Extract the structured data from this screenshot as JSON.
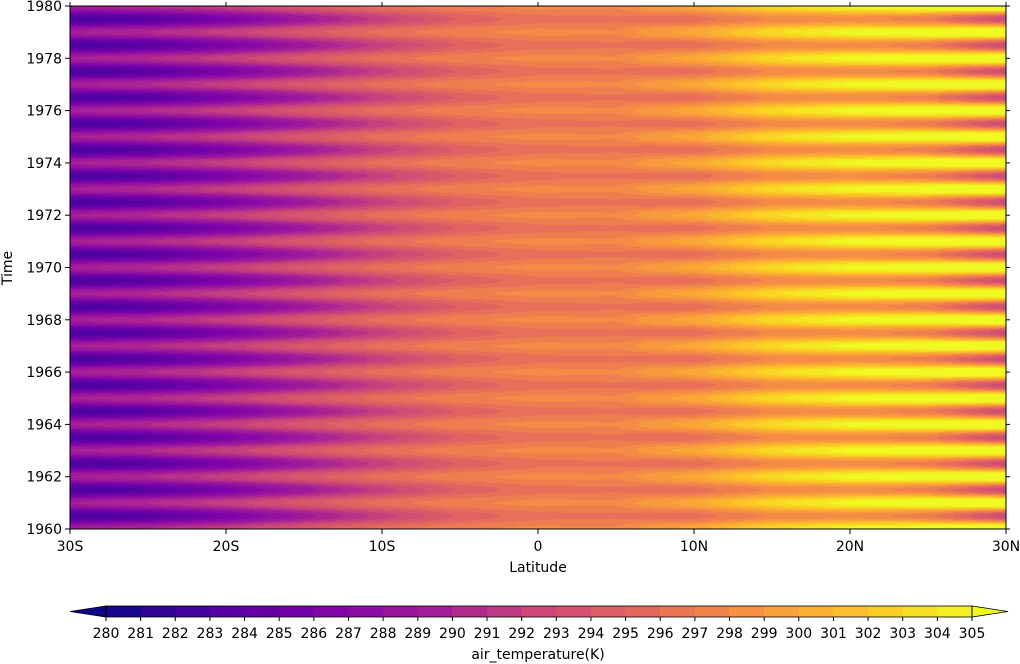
{
  "chart_data": {
    "type": "heatmap",
    "title": "",
    "xlabel": "Latitude",
    "ylabel": "Time",
    "x_ticks": [
      {
        "value": -30,
        "label": "30S"
      },
      {
        "value": -20,
        "label": "20S"
      },
      {
        "value": -10,
        "label": "10S"
      },
      {
        "value": 0,
        "label": "0"
      },
      {
        "value": 10,
        "label": "10N"
      },
      {
        "value": 20,
        "label": "20N"
      },
      {
        "value": 30,
        "label": "30N"
      }
    ],
    "y_ticks": [
      {
        "value": 1960,
        "label": "1960"
      },
      {
        "value": 1962,
        "label": "1962"
      },
      {
        "value": 1964,
        "label": "1964"
      },
      {
        "value": 1966,
        "label": "1966"
      },
      {
        "value": 1968,
        "label": "1968"
      },
      {
        "value": 1970,
        "label": "1970"
      },
      {
        "value": 1972,
        "label": "1972"
      },
      {
        "value": 1974,
        "label": "1974"
      },
      {
        "value": 1976,
        "label": "1976"
      },
      {
        "value": 1978,
        "label": "1978"
      },
      {
        "value": 1980,
        "label": "1980"
      }
    ],
    "xlim": [
      -30,
      30
    ],
    "ylim": [
      1960,
      1980
    ],
    "colormap": "plasma",
    "colorbar": {
      "label": "air_temperature(K)",
      "levels": [
        280,
        281,
        282,
        283,
        284,
        285,
        286,
        287,
        288,
        289,
        290,
        291,
        292,
        293,
        294,
        295,
        296,
        297,
        298,
        299,
        300,
        301,
        302,
        303,
        304,
        305
      ],
      "extend": "both",
      "orientation": "horizontal",
      "placement": "bottom"
    },
    "field": {
      "x_knots": [
        -30,
        -25,
        -20,
        -15,
        -10,
        -5,
        0,
        5,
        7,
        10,
        15,
        20,
        25,
        30
      ],
      "annual_mean": [
        286.5,
        287.5,
        289.5,
        292,
        294.5,
        296.5,
        297.5,
        297.5,
        298,
        298.5,
        301,
        302,
        302,
        300.5
      ],
      "seasonal_amplitude": [
        3.5,
        3.5,
        3,
        2.5,
        2,
        1.3,
        0.8,
        0.6,
        1.5,
        2,
        2.8,
        3.5,
        4.5,
        7.5
      ],
      "period_years": 1
    }
  }
}
